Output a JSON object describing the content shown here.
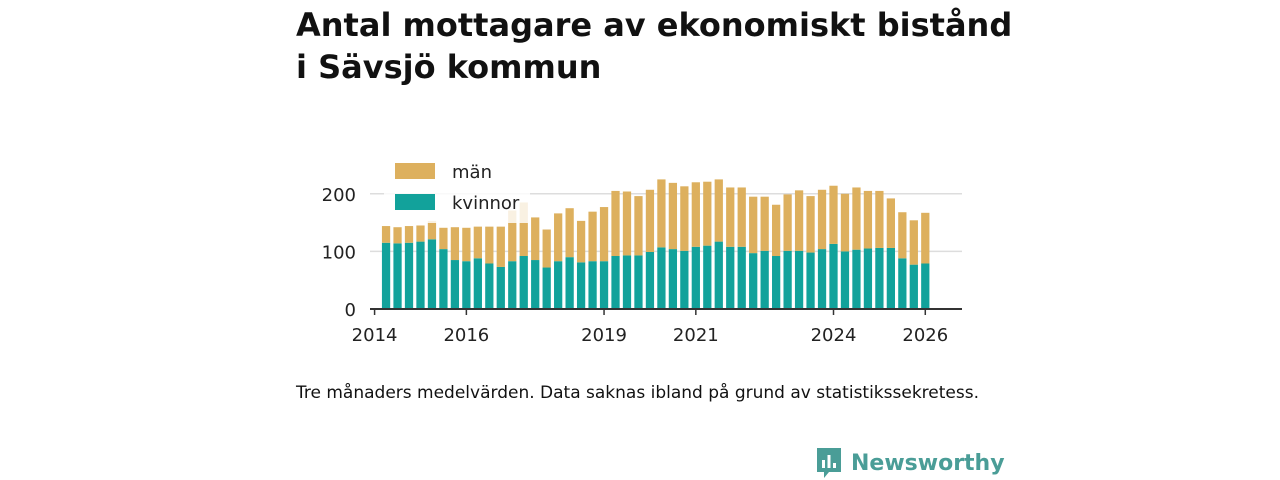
{
  "title": "Antal mottagare av ekonomiskt bistånd i Sävsjö kommun",
  "footnote": "Tre månaders medelvärden. Data saknas ibland på grund av statistikssekretess.",
  "brand": {
    "name": "Newsworthy",
    "icon": "bar-chart-bubble-icon"
  },
  "colors": {
    "man": "#ddb05e",
    "kvinnor": "#12a29b",
    "grid": "#dddddd",
    "axis": "#333333"
  },
  "chart_data": {
    "type": "bar",
    "stacked": true,
    "x_start": 2014.25,
    "x_step": 0.25,
    "x_ticks": [
      2014,
      2016,
      2019,
      2021,
      2024,
      2026
    ],
    "xlim": [
      2013.9,
      2026.8
    ],
    "ylim": [
      0,
      250
    ],
    "y_ticks": [
      0,
      100,
      200
    ],
    "grid": true,
    "legend_position": "top-left",
    "series": [
      {
        "name": "kvinnor",
        "values": [
          115,
          114,
          115,
          117,
          121,
          104,
          85,
          83,
          88,
          79,
          73,
          83,
          92,
          85,
          72,
          83,
          90,
          81,
          83,
          83,
          92,
          93,
          93,
          99,
          107,
          104,
          101,
          108,
          110,
          117,
          108,
          108,
          97,
          101,
          92,
          101,
          101,
          98,
          104,
          113,
          100,
          103,
          105,
          106,
          106,
          88,
          77,
          79
        ]
      },
      {
        "name": "män",
        "values": [
          29,
          28,
          29,
          28,
          32,
          37,
          57,
          58,
          55,
          64,
          70,
          88,
          93,
          74,
          66,
          83,
          85,
          72,
          86,
          94,
          113,
          111,
          103,
          108,
          118,
          115,
          112,
          112,
          111,
          108,
          103,
          103,
          98,
          94,
          89,
          98,
          105,
          98,
          103,
          101,
          100,
          108,
          100,
          99,
          86,
          80,
          77,
          88
        ]
      }
    ]
  }
}
